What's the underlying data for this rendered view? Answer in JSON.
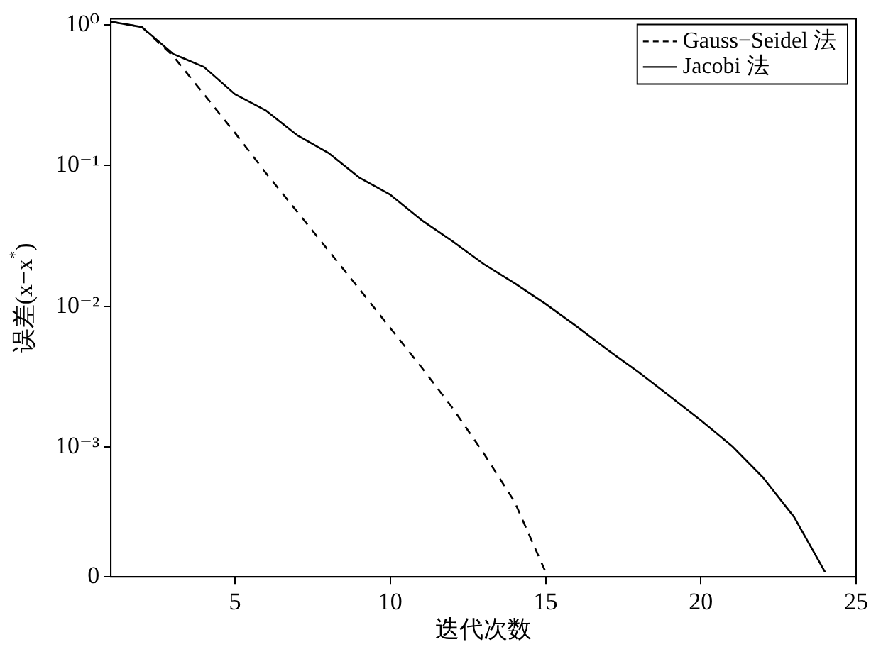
{
  "chart_data": {
    "type": "line",
    "xlabel": "迭代次数",
    "ylabel": "误差(x−x$^{*}$)",
    "log": "y",
    "xlim": [
      1,
      25
    ],
    "xticks": [
      5,
      10,
      15,
      20,
      25
    ],
    "ylim": [
      0.00012,
      1.1
    ],
    "yticks": [
      {
        "value": 0.00012,
        "label": "0"
      },
      {
        "value": 0.001,
        "label": "10⁻³"
      },
      {
        "value": 0.01,
        "label": "10⁻²"
      },
      {
        "value": 0.1,
        "label": "10⁻¹"
      },
      {
        "value": 1,
        "label": "10⁰"
      }
    ],
    "grid": false,
    "legend": "top right",
    "marker": "none",
    "series": [
      {
        "name": "Gauss−Seidel 法",
        "color": "#000000",
        "line_style": "dashed",
        "x": [
          1,
          2,
          3,
          4,
          5,
          6,
          7,
          8,
          9,
          10,
          11,
          12,
          13,
          14,
          15
        ],
        "values": [
          1.05,
          0.96,
          0.6,
          0.32,
          0.17,
          0.088,
          0.047,
          0.025,
          0.0133,
          0.007,
          0.0037,
          0.0019,
          0.00091,
          0.00041,
          0.00013
        ]
      },
      {
        "name": "Jacobi 法",
        "color": "#000000",
        "line_style": "solid",
        "x": [
          1,
          2,
          3,
          4,
          5,
          6,
          7,
          8,
          9,
          10,
          11,
          12,
          13,
          14,
          15,
          16,
          17,
          18,
          19,
          20,
          21,
          22,
          23,
          24
        ],
        "values": [
          1.05,
          0.96,
          0.62,
          0.5,
          0.32,
          0.245,
          0.164,
          0.123,
          0.082,
          0.062,
          0.041,
          0.029,
          0.02,
          0.0146,
          0.0104,
          0.0072,
          0.0049,
          0.0034,
          0.0023,
          0.00155,
          0.00102,
          0.00061,
          0.00032,
          0.00013
        ]
      }
    ]
  }
}
